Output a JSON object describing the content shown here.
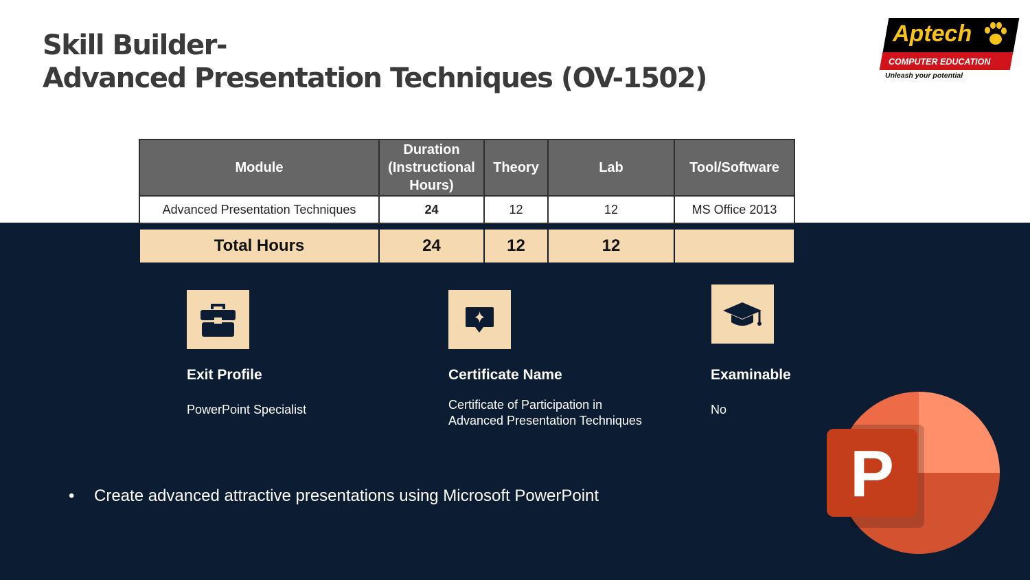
{
  "title": {
    "line1": "Skill Builder-",
    "line2": "Advanced Presentation Techniques (OV-1502)"
  },
  "logo": {
    "brand": "Aptech",
    "sub": "COMPUTER EDUCATION",
    "tagline": "Unleash your potential"
  },
  "table": {
    "headers": [
      "Module",
      "Duration (Instructional Hours)",
      "Theory",
      "Lab",
      "Tool/Software"
    ],
    "row": {
      "module": "Advanced Presentation Techniques",
      "duration": "24",
      "theory": "12",
      "lab": "12",
      "tool": "MS Office 2013"
    },
    "total": {
      "label": "Total Hours",
      "duration": "24",
      "theory": "12",
      "lab": "12",
      "tool": ""
    }
  },
  "info": {
    "exit_profile": {
      "heading": "Exit Profile",
      "value": "PowerPoint Specialist",
      "icon": "briefcase-icon"
    },
    "certificate": {
      "heading": "Certificate Name",
      "line1": "Certificate of Participation in",
      "line2": "Advanced Presentation Techniques",
      "icon": "certificate-badge-icon"
    },
    "examinable": {
      "heading": "Examinable",
      "value": "No",
      "icon": "graduation-cap-icon"
    }
  },
  "bullets": [
    {
      "marker": "•",
      "text": "Create advanced attractive presentations using Microsoft PowerPoint"
    }
  ],
  "colors": {
    "navy": "#0c1c33",
    "beige": "#f5d9b0",
    "header_gray": "#666666",
    "title": "#3a3a3a"
  }
}
